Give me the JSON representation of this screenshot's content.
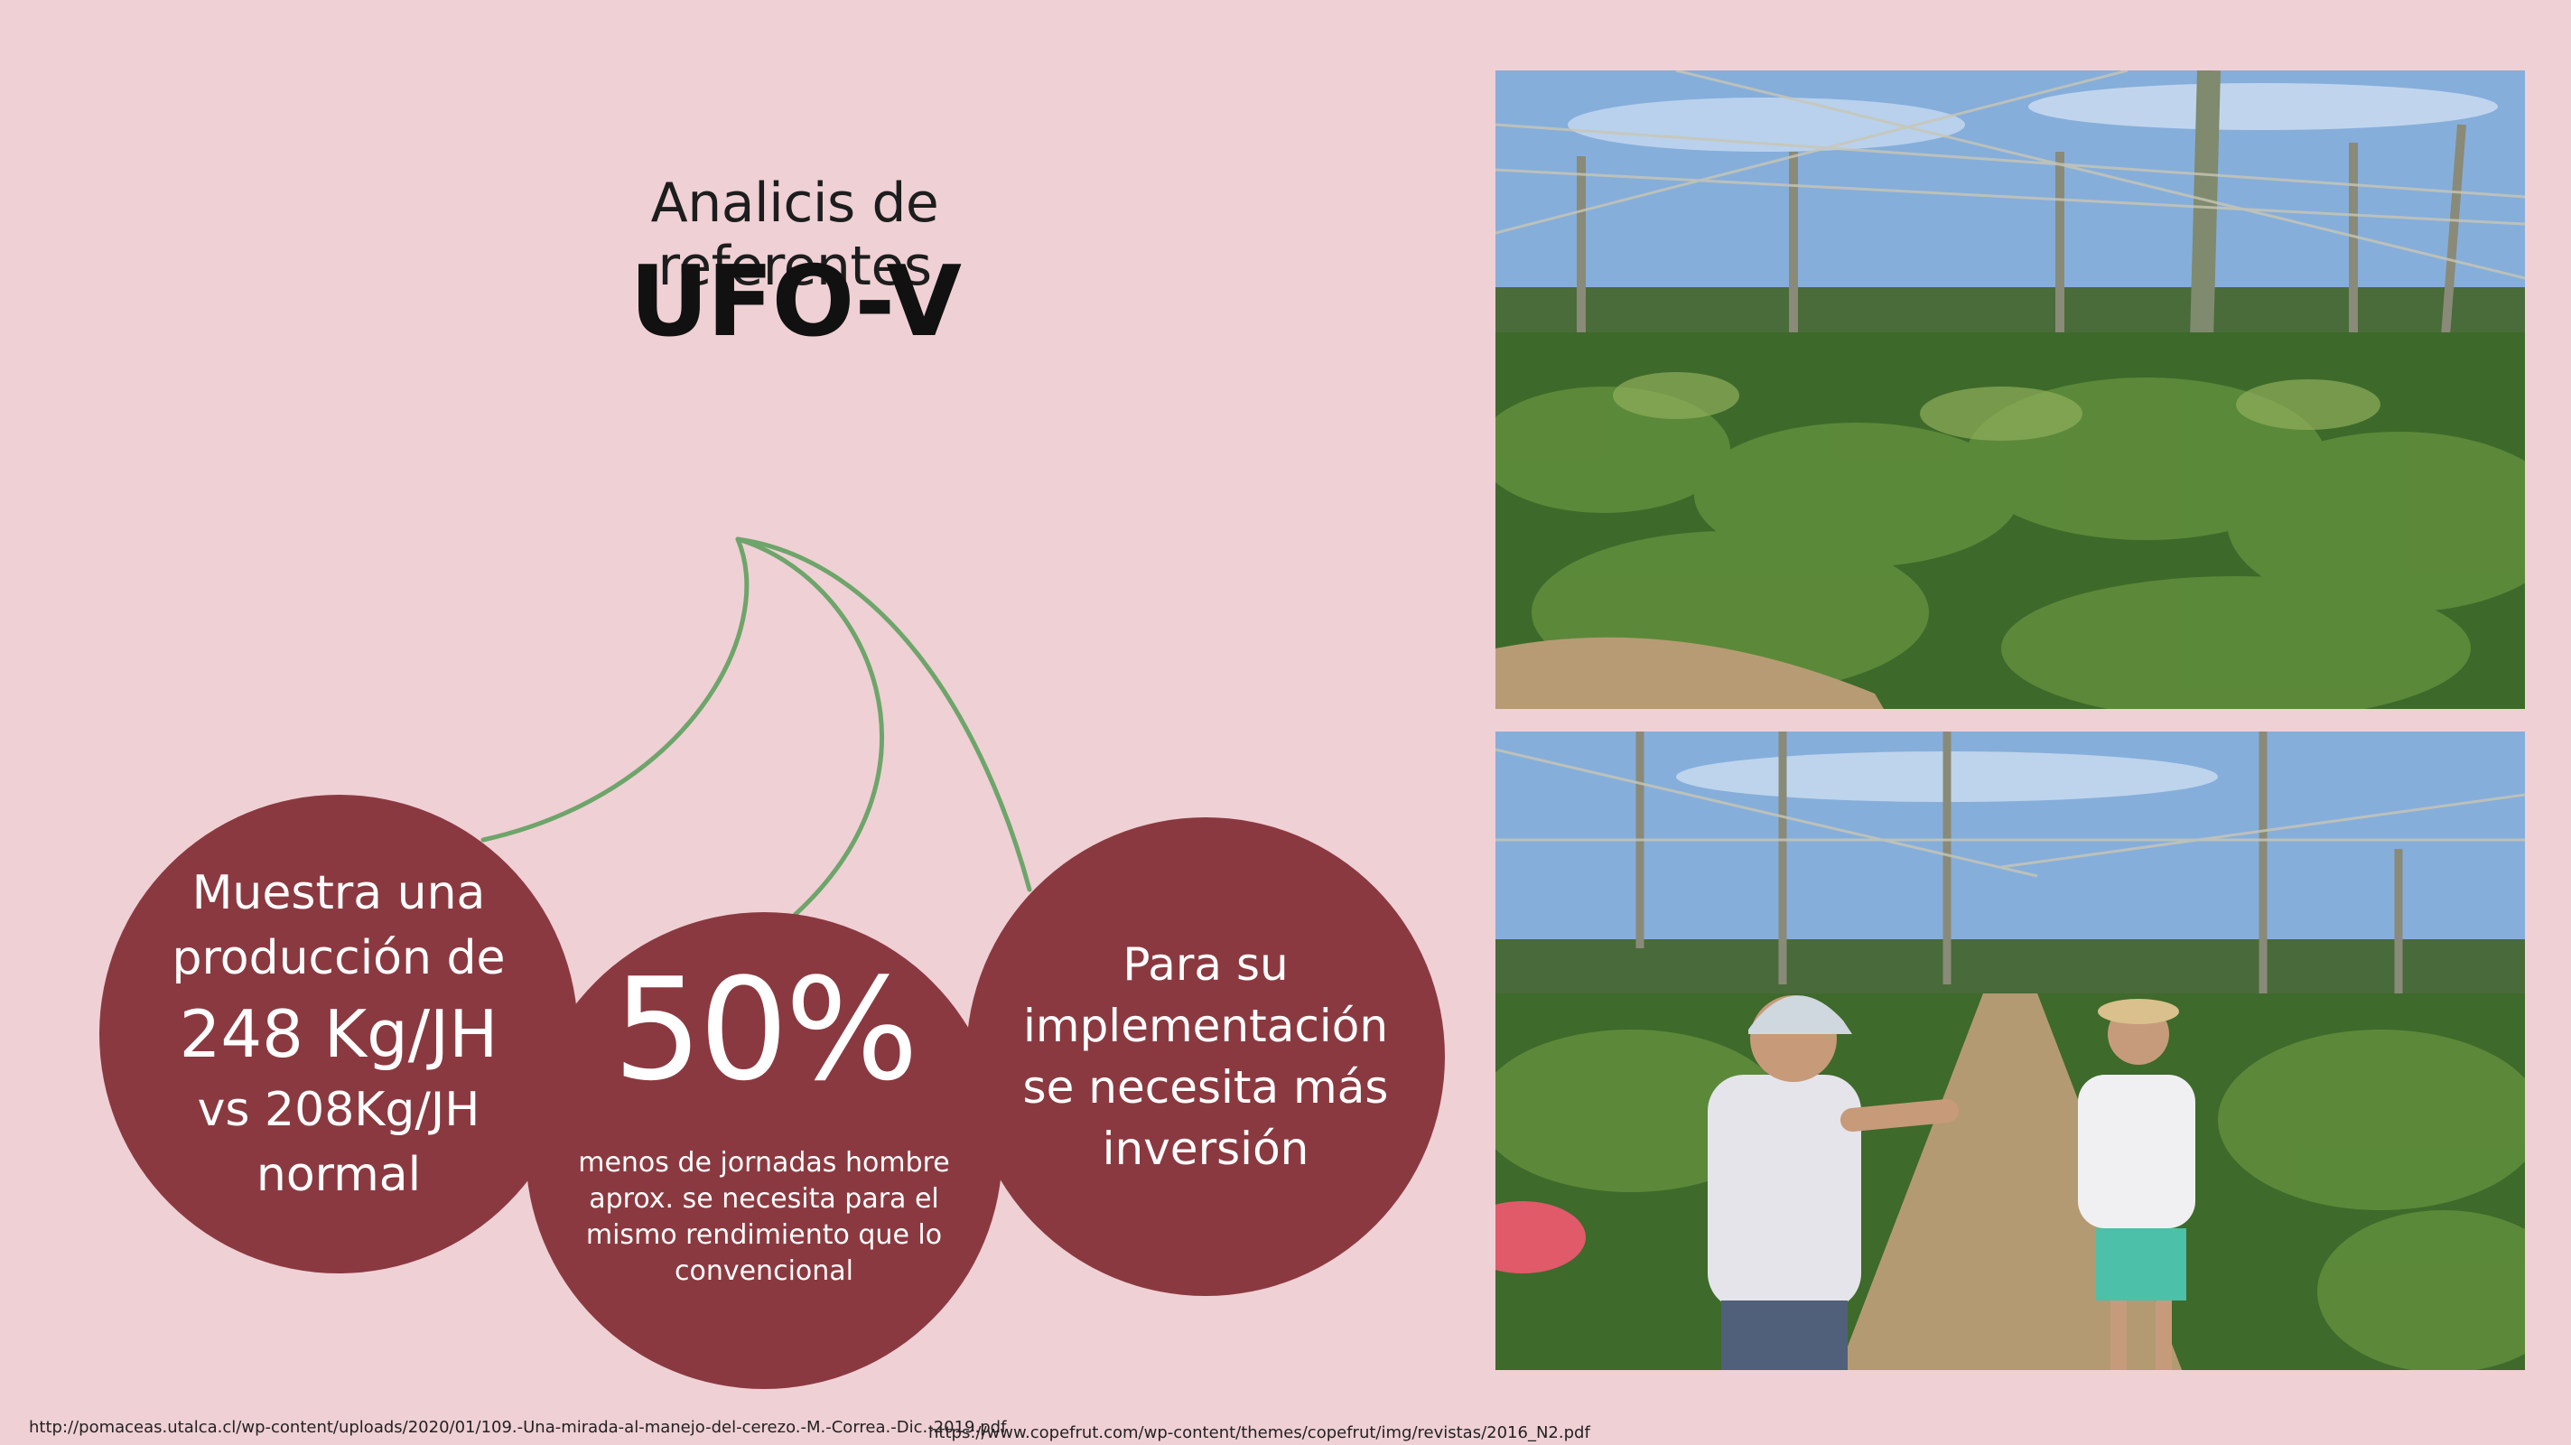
{
  "header": {
    "subtitle": "Analicis de referentes",
    "title": "UFO-V"
  },
  "circles": {
    "production": {
      "line1": "Muestra una",
      "line2": "producción de",
      "highlight": "248 Kg/JH",
      "line3": "vs 208Kg/JH",
      "line4": "normal"
    },
    "labor": {
      "percent": "50%",
      "description": "menos de jornadas hombre aprox. se necesita para el mismo rendimiento que lo convencional"
    },
    "investment": {
      "text": "Para su implementación se necesita más inversión"
    }
  },
  "references": {
    "left": "http://pomaceas.utalca.cl/wp-content/uploads/2020/01/109.-Una-mirada-al-manejo-del-cerezo.-M.-Correa.-Dic.-2019.pdf",
    "right": "https://www.copefrut.com/wp-content/themes/copefrut/img/revistas/2016_N2.pdf"
  },
  "colors": {
    "background": "#efd0d5",
    "circle": "#8b3940",
    "stem": "#6da56a"
  },
  "photos": [
    {
      "subject": "cherry-orchard-ufo-trellis"
    },
    {
      "subject": "two-men-in-cherry-orchard"
    }
  ]
}
